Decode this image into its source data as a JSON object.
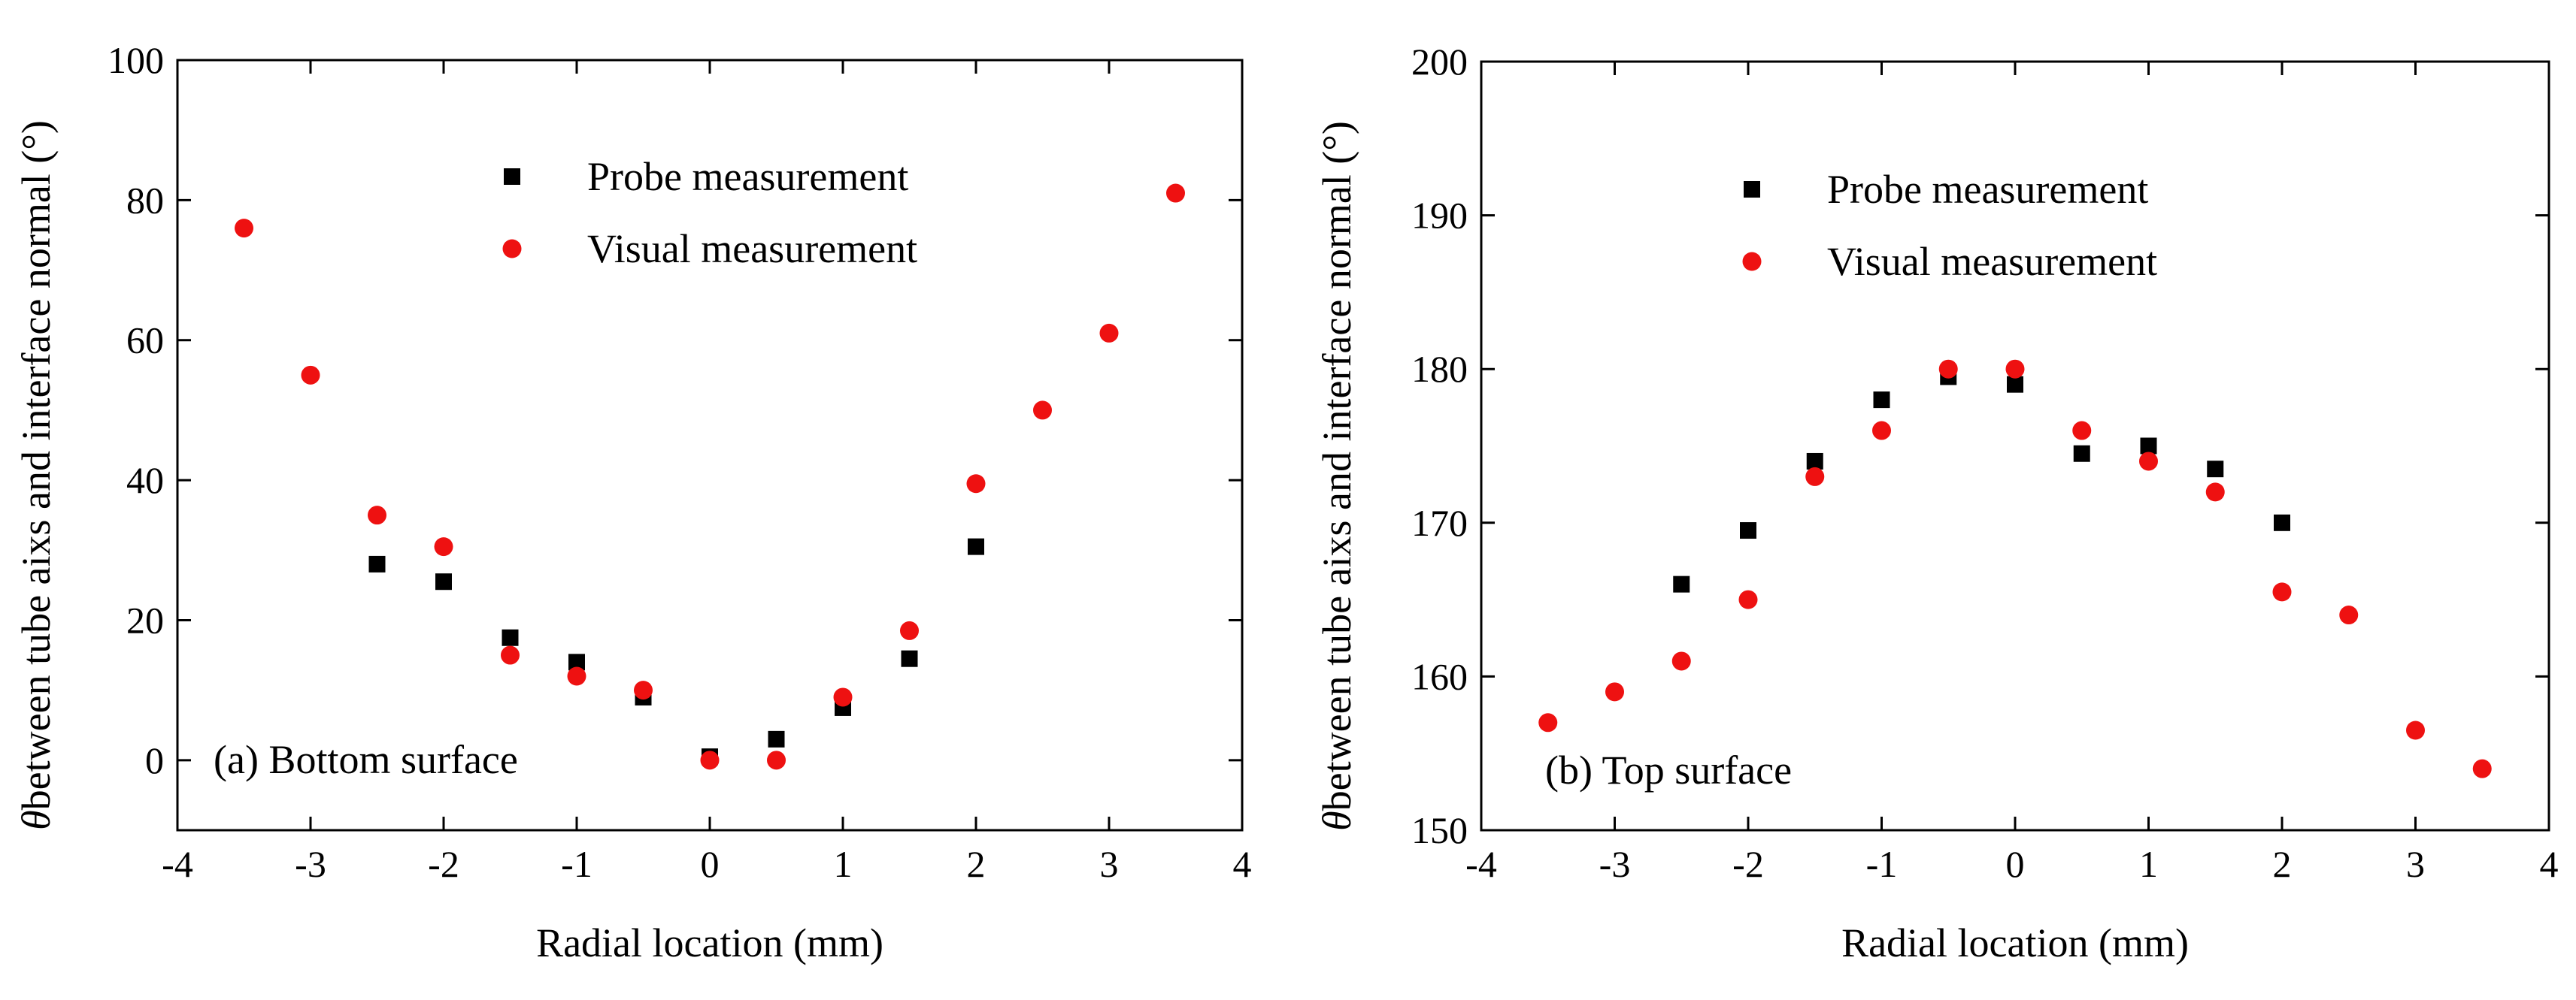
{
  "chart_data": [
    {
      "id": "a",
      "type": "scatter",
      "title": "",
      "annotation": "(a) Bottom surface",
      "xlabel": "Radial location (mm)",
      "ylabel_symbol": "θ",
      "ylabel": "between tube aixs and interface normal (°)",
      "xlim": [
        -4,
        4
      ],
      "ylim": [
        -10,
        100
      ],
      "xticks": [
        -4,
        -3,
        -2,
        -1,
        0,
        1,
        2,
        3,
        4
      ],
      "yticks": [
        0,
        20,
        40,
        60,
        80,
        100
      ],
      "grid": false,
      "legend_position": "top-center",
      "series": [
        {
          "name": "Probe measurement",
          "marker": "square",
          "color": "#000000",
          "points": [
            [
              -2.5,
              28
            ],
            [
              -2,
              25.5
            ],
            [
              -1.5,
              17.5
            ],
            [
              -1,
              14
            ],
            [
              -0.5,
              9
            ],
            [
              0,
              0.5
            ],
            [
              0.5,
              3
            ],
            [
              1,
              7.5
            ],
            [
              1.5,
              14.5
            ],
            [
              2,
              30.5
            ]
          ]
        },
        {
          "name": "Visual measurement",
          "marker": "circle",
          "color": "#ee1111",
          "points": [
            [
              -3.5,
              76
            ],
            [
              -3,
              55
            ],
            [
              -2.5,
              35
            ],
            [
              -2,
              30.5
            ],
            [
              -1.5,
              15
            ],
            [
              -1,
              12
            ],
            [
              -0.5,
              10
            ],
            [
              0,
              0
            ],
            [
              0.5,
              0
            ],
            [
              1,
              9
            ],
            [
              1.5,
              18.5
            ],
            [
              2,
              39.5
            ],
            [
              2.5,
              50
            ],
            [
              3,
              61
            ],
            [
              3.5,
              81
            ]
          ]
        }
      ]
    },
    {
      "id": "b",
      "type": "scatter",
      "title": "",
      "annotation": "(b) Top surface",
      "xlabel": "Radial location (mm)",
      "ylabel_symbol": "θ",
      "ylabel": "between tube aixs and interface normal (°)",
      "xlim": [
        -4,
        4
      ],
      "ylim": [
        150,
        200
      ],
      "xticks": [
        -4,
        -3,
        -2,
        -1,
        0,
        1,
        2,
        3,
        4
      ],
      "yticks": [
        150,
        160,
        170,
        180,
        190,
        200
      ],
      "grid": false,
      "legend_position": "top-center",
      "series": [
        {
          "name": "Probe measurement",
          "marker": "square",
          "color": "#000000",
          "points": [
            [
              -2.5,
              166
            ],
            [
              -2,
              169.5
            ],
            [
              -1.5,
              174
            ],
            [
              -1,
              178
            ],
            [
              -0.5,
              179.5
            ],
            [
              0,
              179
            ],
            [
              0.5,
              174.5
            ],
            [
              1,
              175
            ],
            [
              1.5,
              173.5
            ],
            [
              2,
              170
            ]
          ]
        },
        {
          "name": "Visual measurement",
          "marker": "circle",
          "color": "#ee1111",
          "points": [
            [
              -3.5,
              157
            ],
            [
              -3,
              159
            ],
            [
              -2.5,
              161
            ],
            [
              -2,
              165
            ],
            [
              -1.5,
              173
            ],
            [
              -1,
              176
            ],
            [
              -0.5,
              180
            ],
            [
              0,
              180
            ],
            [
              0.5,
              176
            ],
            [
              1,
              174
            ],
            [
              1.5,
              172
            ],
            [
              2,
              165.5
            ],
            [
              2.5,
              164
            ],
            [
              3,
              156.5
            ],
            [
              3.5,
              154
            ]
          ]
        }
      ]
    }
  ]
}
